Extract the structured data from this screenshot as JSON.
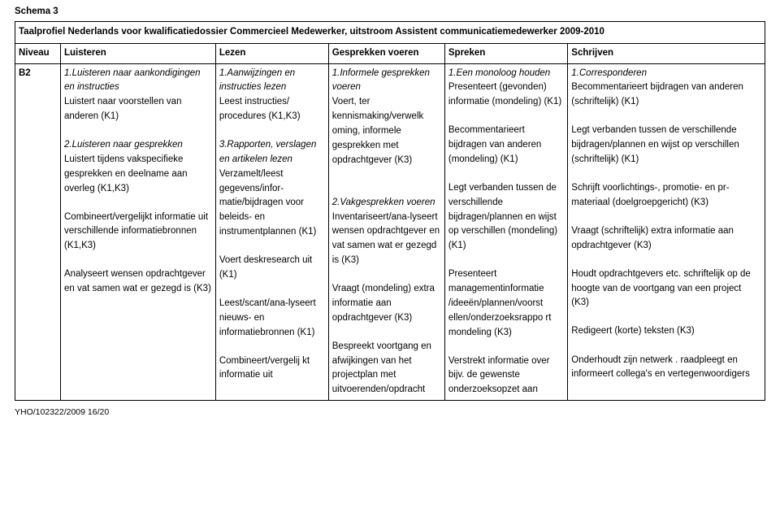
{
  "schema_title": "Schema 3",
  "caption": "Taalprofiel Nederlands voor kwalificatiedossier Commercieel Medewerker, uitstroom Assistent communicatiemedewerker 2009-2010",
  "header": {
    "niveau": "Niveau",
    "luisteren": "Luisteren",
    "lezen": "Lezen",
    "gesprekken": "Gesprekken voeren",
    "spreken": "Spreken",
    "schrijven": "Schrijven"
  },
  "row": {
    "niveau": "B2",
    "luisteren": {
      "t1_title": "1.Luisteren naar aankondigingen en instructies",
      "t1_body": "Luistert naar voorstellen van anderen (K1)",
      "t2_title": "2.Luisteren naar gesprekken",
      "t2_body1": "Luistert tijdens vakspecifieke gesprekken en deelname aan overleg (K1,K3)",
      "t2_body2": "Combineert/vergelijkt informatie uit verschillende informatiebronnen (K1,K3)",
      "t2_body3": "Analyseert wensen opdrachtgever en vat samen wat er gezegd is (K3)"
    },
    "lezen": {
      "t1_title": "1.Aanwijzingen en instructies lezen",
      "t1_body": "Leest instructies/ procedures (K1,K3)",
      "t3_title": "3.Rapporten, verslagen en artikelen lezen",
      "t3_body1": "Verzamelt/leest gegevens/infor-matie/bijdragen voor beleids- en instrumentplannen (K1)",
      "t3_body2": "Voert deskresearch uit (K1)",
      "t3_body3": "Leest/scant/ana-lyseert nieuws- en informatiebronnen (K1)",
      "t3_body4": "Combineert/vergelij kt informatie uit"
    },
    "gesprekken": {
      "t1_title": "1.Informele gesprekken voeren",
      "t1_body": "Voert, ter kennismaking/verwelk oming, informele gesprekken met opdrachtgever (K3)",
      "t2_title": "2.Vakgesprekken voeren",
      "t2_body1": "Inventariseert/ana-lyseert wensen opdrachtgever en vat samen wat er gezegd is (K3)",
      "t2_body2": "Vraagt (mondeling) extra informatie aan opdrachtgever (K3)",
      "t2_body3": "Bespreekt voortgang en afwijkingen van het projectplan met uitvoerenden/opdracht"
    },
    "spreken": {
      "t1_title": "1.Een monoloog houden",
      "t1_body1": "Presenteert (gevonden)  informatie (mondeling) (K1)",
      "t1_body2": "Becommentarieert bijdragen van anderen (mondeling) (K1)",
      "t1_body3": "Legt verbanden tussen de verschillende bijdragen/plannen en wijst op verschillen (mondeling) (K1)",
      "t1_body4": "Presenteert managementinformatie /ideeën/plannen/voorst ellen/onderzoeksrappo rt mondeling (K3)",
      "t1_body5": "Verstrekt informatie over bijv. de gewenste onderzoeksopzet aan"
    },
    "schrijven": {
      "t1_title": "1.Corresponderen",
      "t1_body1": "Becommentarieert bijdragen van anderen (schriftelijk) (K1)",
      "t1_body2": "Legt verbanden tussen de verschillende bijdragen/plannen en wijst op verschillen (schriftelijk) (K1)",
      "t1_body3": "Schrijft voorlichtings-, promotie- en pr-materiaal (doelgroepgericht) (K3)",
      "t1_body4": "Vraagt (schriftelijk) extra informatie aan opdrachtgever (K3)",
      "t1_body5": "Houdt opdrachtgevers etc. schriftelijk op de hoogte van de voortgang van een project (K3)",
      "t1_body6": "Redigeert (korte) teksten (K3)",
      "t1_body7": "Onderhoudt zijn netwerk . raadpleegt en informeert collega's en vertegenwoordigers"
    }
  },
  "footer": "YHO/102322/2009  16/20"
}
